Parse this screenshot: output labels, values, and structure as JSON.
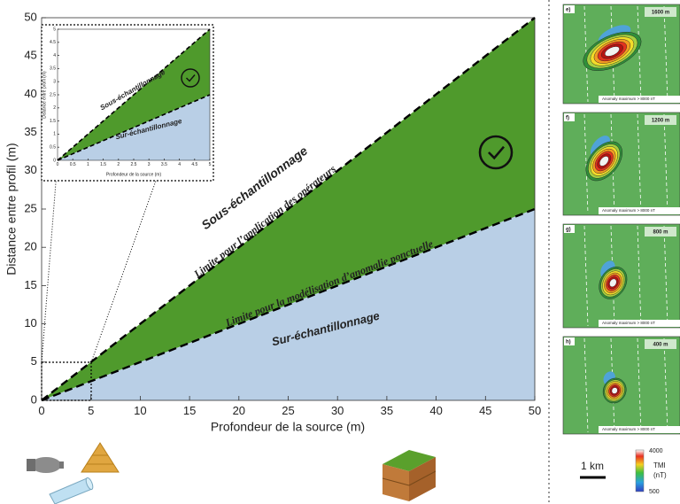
{
  "chart_data": [
    {
      "type": "line",
      "xlabel": "Profondeur de la source (m)",
      "ylabel": "Distance entre profil (m)",
      "xlim": [
        0,
        50
      ],
      "ylim": [
        0,
        50
      ],
      "xticks": [
        0,
        5,
        10,
        15,
        20,
        25,
        30,
        35,
        40,
        45,
        50
      ],
      "yticks": [
        0,
        5,
        10,
        15,
        20,
        25,
        30,
        35,
        40,
        45,
        50
      ],
      "x": [
        0,
        50
      ],
      "series": [
        {
          "name": "Limite pour l’application des opérateurs",
          "color": "#000000",
          "fill": "#4f9a2c",
          "values": [
            0,
            50
          ]
        },
        {
          "name": "Limite pour la modélisation d’anomalie ponctuelle",
          "color": "#000000",
          "fill": "#b9cfe6",
          "values": [
            0,
            25
          ]
        }
      ],
      "annotations": [
        {
          "text": "Sous-échantillonnage",
          "color": "#c00000"
        },
        {
          "text": "Sur-échantillonnage",
          "color": "#2f5fa8"
        }
      ]
    },
    {
      "type": "line",
      "xlabel": "Profondeur de la source (m)",
      "ylabel": "Distance entre profil (m)",
      "xlim": [
        0,
        5
      ],
      "ylim": [
        0,
        5
      ],
      "xticks": [
        0,
        0.5,
        1,
        1.5,
        2,
        2.5,
        3,
        3.5,
        4,
        4.5,
        5
      ],
      "yticks": [
        0,
        0.5,
        1,
        1.5,
        2,
        2.5,
        3,
        3.5,
        4,
        4.5,
        5
      ],
      "x": [
        0,
        5
      ],
      "series": [
        {
          "color": "#000000",
          "fill": "#4f9a2c",
          "values": [
            0,
            5
          ]
        },
        {
          "color": "#000000",
          "fill": "#b9cfe6",
          "values": [
            0,
            2.5
          ]
        }
      ],
      "annotations": [
        {
          "text": "Sous-échantillonnage",
          "color": "#c00000"
        },
        {
          "text": "Sur-échantillonnage",
          "color": "#2f5fa8"
        }
      ]
    }
  ],
  "panels": [
    {
      "label": "e)",
      "height": "1600 m",
      "note": "Anomaly maximum > 8000 nT"
    },
    {
      "label": "f)",
      "height": "1200 m",
      "note": "Anomaly maximum > 8000 nT"
    },
    {
      "label": "g)",
      "height": "800 m",
      "note": "Anomaly maximum > 8000 nT"
    },
    {
      "label": "h)",
      "height": "400 m",
      "note": "Anomaly maximum > 8000 nT"
    }
  ],
  "scale_bar": "1 km",
  "colorbar": {
    "max": "4000",
    "title": "TMI",
    "unit": "(nT)",
    "min": "500"
  }
}
